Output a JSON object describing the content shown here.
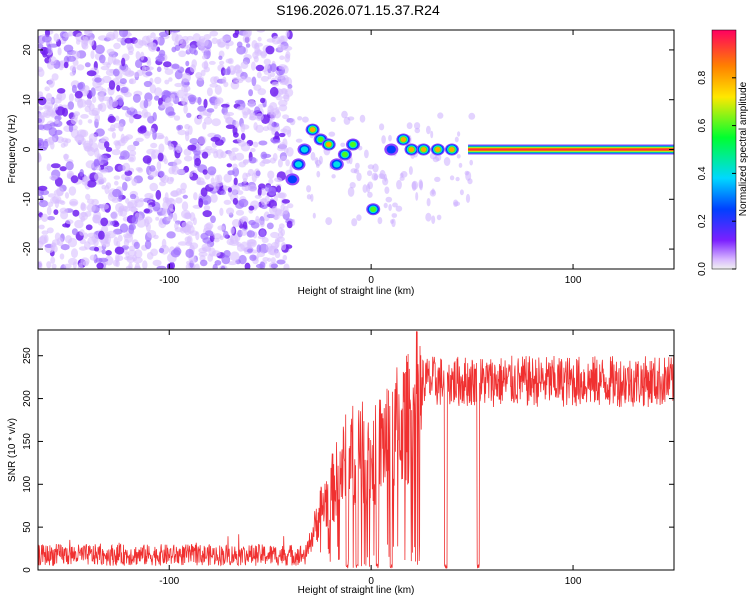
{
  "title": "S196.2026.071.15.37.R24",
  "chart_data": [
    {
      "type": "heatmap",
      "name": "spectrogram",
      "xlabel": "Height of straight line (km)",
      "ylabel": "Frequency (Hz)",
      "xlim": [
        -165,
        150
      ],
      "ylim": [
        -24,
        24
      ],
      "xticks": [
        -100,
        0,
        100
      ],
      "yticks": [
        -20,
        -10,
        0,
        10,
        20
      ],
      "colorbar": {
        "label": "Normalized spectral amplitude",
        "range": [
          0,
          1
        ],
        "ticks": [
          0.0,
          0.2,
          0.4,
          0.6,
          0.8
        ]
      },
      "noise_region_x": [
        -165,
        -40
      ],
      "signal_tracks": [
        {
          "x": -39,
          "f": -6,
          "amp": 0.35
        },
        {
          "x": -36,
          "f": -3,
          "amp": 0.45
        },
        {
          "x": -33,
          "f": 0,
          "amp": 0.5
        },
        {
          "x": -29,
          "f": 4,
          "amp": 0.75
        },
        {
          "x": -25,
          "f": 2,
          "amp": 0.55
        },
        {
          "x": -21,
          "f": 1,
          "amp": 0.85
        },
        {
          "x": -17,
          "f": -3,
          "amp": 0.45
        },
        {
          "x": -13,
          "f": -1,
          "amp": 0.55
        },
        {
          "x": -9,
          "f": 1,
          "amp": 0.65
        },
        {
          "x": 1,
          "f": -12,
          "amp": 0.6
        },
        {
          "x": 10,
          "f": 0,
          "amp": 0.35
        },
        {
          "x": 16,
          "f": 2,
          "amp": 0.75
        },
        {
          "x": 20,
          "f": 0,
          "amp": 0.85
        },
        {
          "x": 26,
          "f": 0,
          "amp": 0.8
        },
        {
          "x": 33,
          "f": 0,
          "amp": 0.8
        },
        {
          "x": 40,
          "f": 0,
          "amp": 0.75
        }
      ],
      "steady_line": {
        "x_start": 48,
        "x_end": 150,
        "f": 0,
        "amp": 0.95
      }
    },
    {
      "type": "line",
      "name": "snr",
      "xlabel": "Height of straight line (km)",
      "ylabel": "SNR (10 * v/v)",
      "xlim": [
        -165,
        150
      ],
      "ylim": [
        0,
        280
      ],
      "xticks": [
        -100,
        0,
        100
      ],
      "yticks": [
        0,
        50,
        100,
        150,
        200,
        250
      ],
      "series": [
        {
          "name": "SNR",
          "color": "#f03030",
          "profile": {
            "noise_x": [
              -165,
              -32
            ],
            "noise_mean": 15,
            "rise_x": [
              -32,
              25
            ],
            "rise_points": [
              [
                -32,
                20
              ],
              [
                -25,
                70
              ],
              [
                -18,
                100
              ],
              [
                -12,
                130
              ],
              [
                -6,
                140
              ],
              [
                0,
                125
              ],
              [
                6,
                150
              ],
              [
                12,
                165
              ],
              [
                18,
                175
              ],
              [
                25,
                205
              ]
            ],
            "plateau_x": [
              25,
              150
            ],
            "plateau_mean": 220,
            "dropouts": [
              -12,
              -7,
              3,
              10,
              37,
              53
            ]
          }
        }
      ]
    }
  ]
}
